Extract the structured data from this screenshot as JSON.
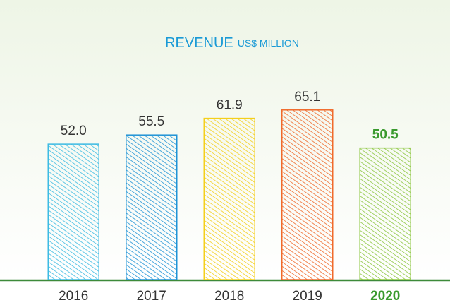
{
  "chart_data": {
    "type": "bar",
    "title": "REVENUE",
    "subtitle": "US$ MILLION",
    "categories": [
      "2016",
      "2017",
      "2018",
      "2019",
      "2020"
    ],
    "values": [
      52.0,
      55.5,
      61.9,
      65.1,
      50.5
    ],
    "value_labels": [
      "52.0",
      "55.5",
      "61.9",
      "65.1",
      "50.5"
    ],
    "colors": [
      "#3dbbe3",
      "#1f93d6",
      "#f4cf1c",
      "#f06a2b",
      "#8cc63f"
    ],
    "highlight": "2020",
    "highlight_color": "#3a9a2e"
  }
}
